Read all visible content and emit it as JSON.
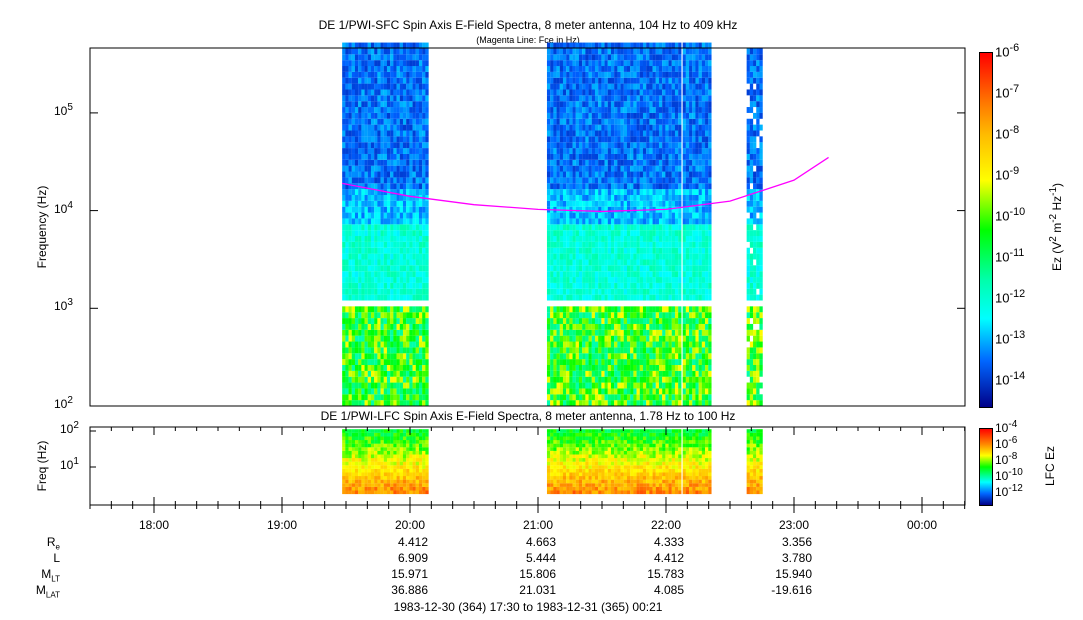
{
  "chart_data": [
    {
      "type": "heatmap",
      "title": "DE 1/PWI-SFC  Spin Axis E-Field Spectra, 8 meter antenna, 104 Hz to 409 kHz",
      "subtitle": "(Magenta Line: Fce in Hz)",
      "ylabel": "Frequency (Hz)",
      "yscale": "log",
      "ylim": [
        100,
        409000
      ],
      "ytick_labels": [
        "10^2",
        "10^3",
        "10^4",
        "10^5"
      ],
      "colorbar": {
        "label": "Ez (V^2 m^-2 Hz^-1)",
        "range": [
          3.98e-15,
          1e-06
        ],
        "tick_labels": [
          "10^-6",
          "10^-7",
          "10^-8",
          "10^-9",
          "10^-10",
          "10^-11",
          "10^-12",
          "10^-13",
          "10^-14"
        ]
      },
      "data_intervals": [
        [
          "19:28",
          "20:08"
        ],
        [
          "21:04",
          "22:06"
        ],
        [
          "22:08",
          "22:20"
        ],
        [
          "22:38",
          "22:44"
        ]
      ],
      "fce_line": {
        "color": "#ff00ff",
        "time_hours": [
          19.47,
          20.0,
          20.5,
          21.0,
          21.5,
          22.0,
          22.5,
          23.0,
          23.27
        ],
        "fce_hz": [
          19000,
          14000,
          11500,
          10300,
          9800,
          10300,
          12500,
          20500,
          35000
        ]
      }
    },
    {
      "type": "heatmap",
      "title": "DE 1/PWI-LFC  Spin Axis E-Field Spectra, 8 meter antenna, 1.78 Hz to 100 Hz",
      "ylabel": "Freq (Hz)",
      "yscale": "log",
      "ylim": [
        1.78,
        100
      ],
      "ytick_labels": [
        "10^1",
        "10^2"
      ],
      "colorbar": {
        "label": "LFC Ez",
        "range": [
          1e-12,
          0.0001
        ],
        "tick_labels": [
          "10^-4",
          "10^-6",
          "10^-8",
          "10^-10",
          "10^-12"
        ]
      }
    }
  ],
  "xaxis": {
    "tick_labels": [
      "18:00",
      "19:00",
      "20:00",
      "21:00",
      "22:00",
      "23:00",
      "00:00"
    ],
    "range": "1983-12-30 (364) 17:30 to 1983-12-31 (365) 00:21"
  },
  "ephemeris": [
    {
      "label": "R",
      "sub": "e",
      "values": [
        "4.412",
        "4.663",
        "4.333",
        "3.356"
      ]
    },
    {
      "label": "L",
      "sub": "",
      "values": [
        "6.909",
        "5.444",
        "4.412",
        "3.780"
      ]
    },
    {
      "label": "M",
      "sub": "LT",
      "values": [
        "15.971",
        "15.806",
        "15.783",
        "15.940"
      ]
    },
    {
      "label": "M",
      "sub": "LAT",
      "values": [
        "36.886",
        "21.031",
        "4.085",
        "-19.616"
      ]
    }
  ],
  "colors": {
    "fce": "#ff00ff"
  }
}
